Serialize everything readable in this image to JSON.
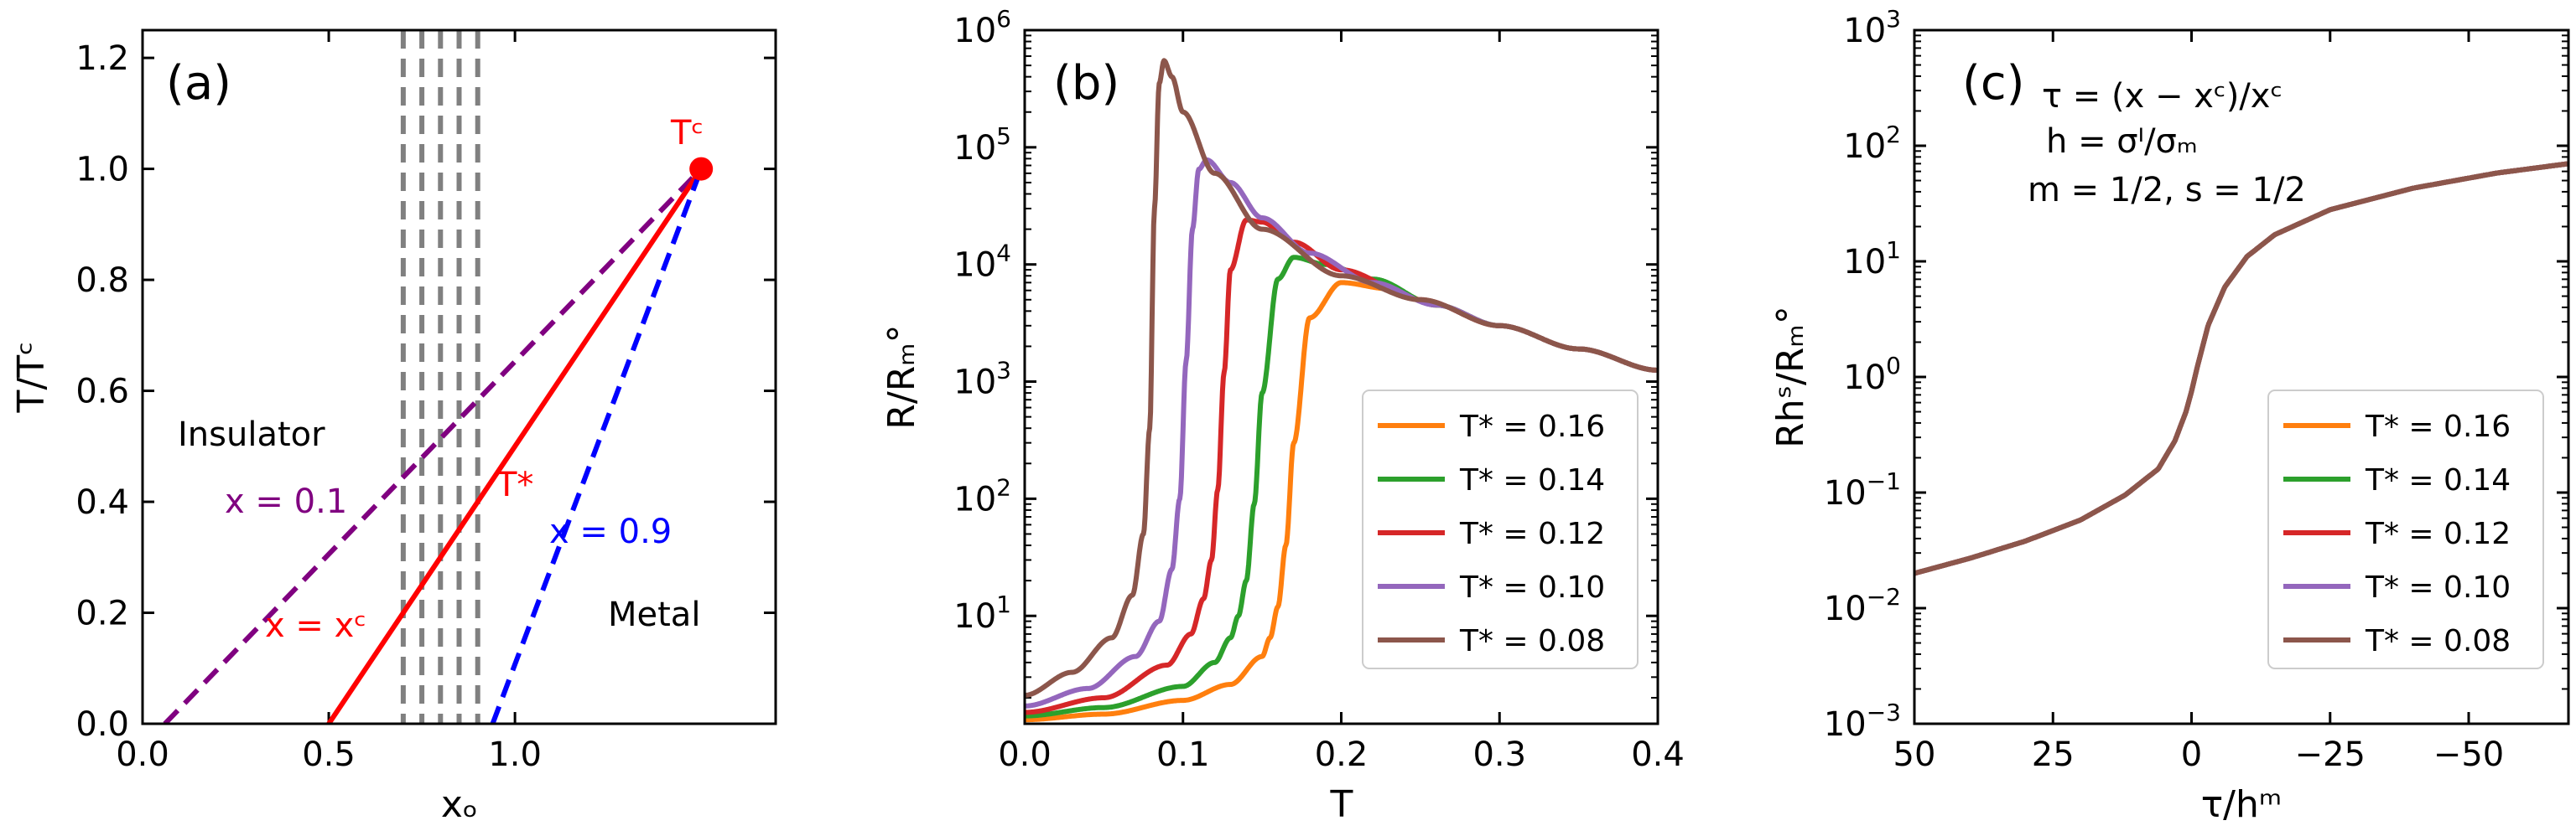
{
  "colors": {
    "orange": "#ff7f0e",
    "green": "#2ca02c",
    "red": "#d62728",
    "purple": "#9467bd",
    "brown": "#8c564b",
    "dark_purple": "#800080",
    "blue": "#0000ff",
    "bright_red": "#ff0000",
    "grey": "#808080"
  },
  "chart_data": [
    {
      "panel": "a",
      "type": "line",
      "panel_label": "(a)",
      "xlabel": "xₒ",
      "ylabel": "T/Tᶜ",
      "xlim": [
        0.0,
        1.7
      ],
      "ylim": [
        0.0,
        1.25
      ],
      "xtick_values": [
        0.0,
        0.5,
        1.0
      ],
      "xtick_labels": [
        "0.0",
        "0.5",
        "1.0"
      ],
      "ytick_values": [
        0.0,
        0.2,
        0.4,
        0.6,
        0.8,
        1.0,
        1.2
      ],
      "ytick_labels": [
        "0.0",
        "0.2",
        "0.4",
        "0.6",
        "0.8",
        "1.0",
        "1.2"
      ],
      "critical_point": {
        "x": 1.5,
        "y": 1.0,
        "label": "Tᶜ"
      },
      "lines": [
        {
          "name": "x = 0.1",
          "style": "dashed",
          "color": "dark_purple",
          "x": [
            0.06,
            1.5
          ],
          "y": [
            0.0,
            1.0
          ]
        },
        {
          "name": "x = xᶜ",
          "style": "solid",
          "color": "bright_red",
          "x": [
            0.5,
            1.5
          ],
          "y": [
            0.0,
            1.0
          ]
        },
        {
          "name": "x = 0.9",
          "style": "dashed",
          "color": "blue",
          "x": [
            0.94,
            1.5
          ],
          "y": [
            0.0,
            1.0
          ]
        }
      ],
      "vertical_dashed_x": [
        0.7,
        0.75,
        0.8,
        0.85,
        0.9
      ],
      "annotations": {
        "insulator": "Insulator",
        "metal": "Metal",
        "x01": "x = 0.1",
        "x09": "x = 0.9",
        "tstar": "T*",
        "xc": "x = xᶜ"
      }
    },
    {
      "panel": "b",
      "type": "line",
      "panel_label": "(b)",
      "xlabel": "T",
      "ylabel": "R/Rₘ°",
      "xlim": [
        0.0,
        0.4
      ],
      "yscale": "log",
      "ylim": [
        1.2,
        1000000
      ],
      "xtick_values": [
        0.0,
        0.1,
        0.2,
        0.3,
        0.4
      ],
      "xtick_labels": [
        "0.0",
        "0.1",
        "0.2",
        "0.3",
        "0.4"
      ],
      "ytick_exponents": [
        1,
        2,
        3,
        4,
        5,
        6
      ],
      "ytick_base": "10",
      "legend_position": "lower-right",
      "series": [
        {
          "name": "T* = 0.16",
          "color": "orange",
          "tstar": 0.16,
          "T": [
            0.0,
            0.05,
            0.1,
            0.13,
            0.15,
            0.155,
            0.16,
            0.165,
            0.17,
            0.18,
            0.2,
            0.23,
            0.26,
            0.3,
            0.35,
            0.4
          ],
          "R": [
            1.3,
            1.45,
            1.9,
            2.6,
            4.5,
            6.5,
            12,
            40,
            300,
            3500,
            7000,
            6200,
            4500,
            3000,
            1900,
            1250
          ]
        },
        {
          "name": "T* = 0.14",
          "color": "green",
          "tstar": 0.14,
          "T": [
            0.0,
            0.05,
            0.1,
            0.12,
            0.13,
            0.135,
            0.14,
            0.145,
            0.15,
            0.16,
            0.17,
            0.19,
            0.22,
            0.26,
            0.3,
            0.35,
            0.4
          ],
          "R": [
            1.4,
            1.65,
            2.5,
            4,
            6.5,
            10,
            20,
            90,
            800,
            7500,
            11500,
            10000,
            7500,
            4500,
            3000,
            1900,
            1250
          ]
        },
        {
          "name": "T* = 0.12",
          "color": "red",
          "tstar": 0.12,
          "T": [
            0.0,
            0.05,
            0.09,
            0.105,
            0.113,
            0.118,
            0.122,
            0.126,
            0.13,
            0.14,
            0.15,
            0.17,
            0.2,
            0.25,
            0.3,
            0.35,
            0.4
          ],
          "R": [
            1.5,
            2,
            3.8,
            7,
            14,
            30,
            120,
            1200,
            9000,
            24000,
            23000,
            15500,
            9000,
            5000,
            3000,
            1900,
            1250
          ]
        },
        {
          "name": "T* = 0.10",
          "color": "purple",
          "tstar": 0.1,
          "T": [
            0.0,
            0.04,
            0.07,
            0.085,
            0.093,
            0.098,
            0.102,
            0.106,
            0.11,
            0.115,
            0.13,
            0.15,
            0.18,
            0.22,
            0.26,
            0.3,
            0.35,
            0.4
          ],
          "R": [
            1.7,
            2.4,
            4.5,
            9,
            25,
            100,
            1500,
            20000,
            65000,
            78000,
            50000,
            25000,
            12500,
            7000,
            4500,
            3000,
            1900,
            1250
          ]
        },
        {
          "name": "T* = 0.08",
          "color": "brown",
          "tstar": 0.08,
          "T": [
            0.0,
            0.03,
            0.055,
            0.068,
            0.075,
            0.079,
            0.082,
            0.085,
            0.088,
            0.093,
            0.1,
            0.12,
            0.15,
            0.2,
            0.25,
            0.3,
            0.35,
            0.4
          ],
          "R": [
            2.1,
            3.3,
            6.5,
            15,
            50,
            400,
            30000,
            350000,
            550000,
            400000,
            200000,
            60000,
            20000,
            8000,
            5000,
            3000,
            1900,
            1250
          ]
        }
      ]
    },
    {
      "panel": "c",
      "type": "line",
      "panel_label": "(c)",
      "xlabel": "τ/hᵐ",
      "ylabel": "Rhˢ/Rₘ°",
      "xlim": [
        50,
        -68
      ],
      "yscale": "log",
      "ylim": [
        0.001,
        1000
      ],
      "xtick_values": [
        50,
        25,
        0,
        -25,
        -50
      ],
      "xtick_labels": [
        "50",
        "25",
        "0",
        "−25",
        "−50"
      ],
      "ytick_exponents": [
        -3,
        -2,
        -1,
        0,
        1,
        2,
        3
      ],
      "ytick_base": "10",
      "equations": {
        "line1": "τ = (x − xᶜ)/xᶜ",
        "line2": "h = σᴵ/σₘ",
        "line3": "m = 1/2, s = 1/2"
      },
      "legend_position": "lower-right",
      "series_names": [
        "T* = 0.16",
        "T* = 0.14",
        "T* = 0.12",
        "T* = 0.10",
        "T* = 0.08"
      ],
      "series_colors": [
        "orange",
        "green",
        "red",
        "purple",
        "brown"
      ],
      "collapsed_curve": {
        "tau": [
          50,
          40,
          30,
          20,
          12,
          6,
          3,
          1,
          0,
          -1,
          -3,
          -6,
          -10,
          -15,
          -25,
          -40,
          -55,
          -68
        ],
        "R": [
          0.02,
          0.027,
          0.038,
          0.058,
          0.095,
          0.16,
          0.28,
          0.5,
          0.75,
          1.2,
          2.8,
          6,
          11,
          17,
          28,
          43,
          58,
          70
        ]
      }
    }
  ]
}
